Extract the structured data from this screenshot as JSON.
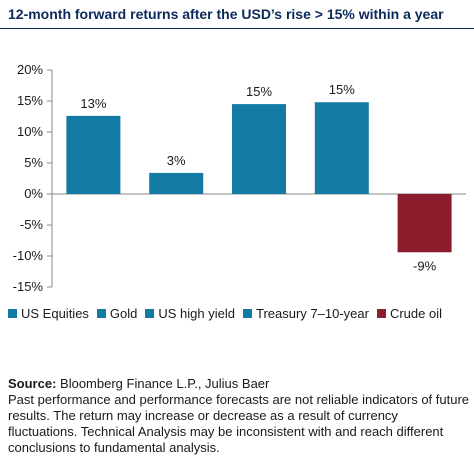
{
  "title": "12-month forward returns after the USD’s rise > 15% within a year",
  "chart_data": {
    "type": "bar",
    "categories": [
      "US Equities",
      "Gold",
      "US high yield",
      "Treasury 7–10-year",
      "Crude oil"
    ],
    "values": [
      12.6,
      3.4,
      14.5,
      14.8,
      -9.4
    ],
    "data_labels": [
      "13%",
      "3%",
      "15%",
      "15%",
      "-9%"
    ],
    "ylim": [
      -15,
      20
    ],
    "yticks": [
      20,
      15,
      10,
      5,
      0,
      -5,
      -10,
      -15
    ],
    "ytick_labels": [
      "20%",
      "15%",
      "10%",
      "5%",
      "0%",
      "-5%",
      "-10%",
      "-15%"
    ],
    "colors": [
      "#137aa3",
      "#137aa3",
      "#137aa3",
      "#137aa3",
      "#8c1d2c"
    ],
    "legend_position": "bottom"
  },
  "legend": [
    {
      "label": "US Equities",
      "color": "#137aa3"
    },
    {
      "label": "Gold",
      "color": "#137aa3"
    },
    {
      "label": "US high yield",
      "color": "#137aa3"
    },
    {
      "label": "Treasury 7–10-year",
      "color": "#137aa3"
    },
    {
      "label": "Crude oil",
      "color": "#8c1d2c"
    }
  ],
  "footer": {
    "source_label": "Source:",
    "source_text": "Bloomberg Finance L.P., Julius Baer",
    "disclaimer": "Past performance and performance forecasts are not reliable indicators of future results. The return may increase or decrease as a result of currency fluctuations. Technical Analysis may be inconsistent with and reach different conclusions to fundamental analysis."
  }
}
